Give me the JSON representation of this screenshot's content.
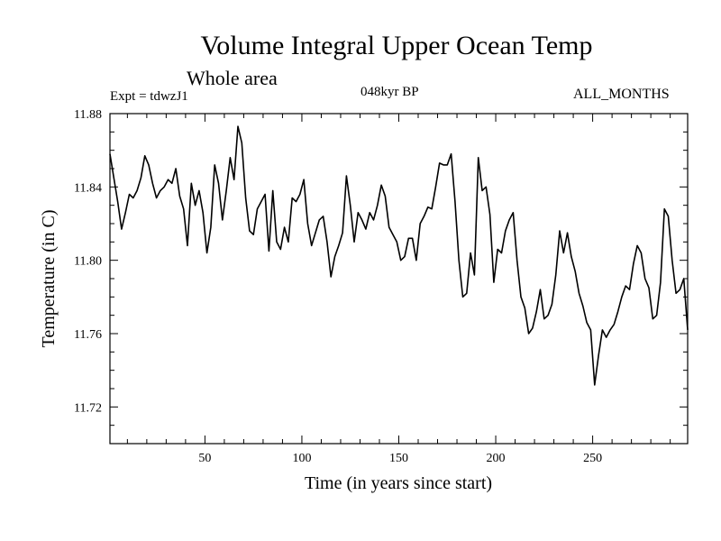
{
  "chart_data": {
    "type": "line",
    "title": "Volume Integral Upper Ocean Temp",
    "subtitle": "Whole area",
    "experiment_label": "Expt = tdwzJ1",
    "period_label": "048kyr BP",
    "months_label": "ALL_MONTHS",
    "xlabel": "Time (in years since start)",
    "ylabel": "Temperature (in C)",
    "xlim": [
      1,
      299
    ],
    "ylim": [
      11.7,
      11.88
    ],
    "x_ticks": [
      50,
      100,
      150,
      200,
      250
    ],
    "y_ticks": [
      11.72,
      11.76,
      11.8,
      11.84,
      11.88
    ],
    "y_tick_labels": [
      "11.72",
      "11.76",
      "11.80",
      "11.84",
      "11.88"
    ],
    "series": [
      {
        "name": "Temperature",
        "color": "#000000",
        "x": [
          1,
          3,
          5,
          7,
          9,
          11,
          13,
          15,
          17,
          19,
          21,
          23,
          25,
          27,
          29,
          31,
          33,
          35,
          37,
          39,
          41,
          43,
          45,
          47,
          49,
          51,
          53,
          55,
          57,
          59,
          61,
          63,
          65,
          67,
          69,
          71,
          73,
          75,
          77,
          79,
          81,
          83,
          85,
          87,
          89,
          91,
          93,
          95,
          97,
          99,
          101,
          103,
          105,
          107,
          109,
          111,
          113,
          115,
          117,
          119,
          121,
          123,
          125,
          127,
          129,
          131,
          133,
          135,
          137,
          139,
          141,
          143,
          145,
          147,
          149,
          151,
          153,
          155,
          157,
          159,
          161,
          163,
          165,
          167,
          169,
          171,
          173,
          175,
          177,
          179,
          181,
          183,
          185,
          187,
          189,
          191,
          193,
          195,
          197,
          199,
          201,
          203,
          205,
          207,
          209,
          211,
          213,
          215,
          217,
          219,
          221,
          223,
          225,
          227,
          229,
          231,
          233,
          235,
          237,
          239,
          241,
          243,
          245,
          247,
          249,
          251,
          253,
          255,
          257,
          259,
          261,
          263,
          265,
          267,
          269,
          271,
          273,
          275,
          277,
          279,
          281,
          283,
          285,
          287,
          289,
          291,
          293,
          295,
          297,
          299
        ],
        "values": [
          11.858,
          11.845,
          11.832,
          11.817,
          11.826,
          11.836,
          11.834,
          11.838,
          11.845,
          11.857,
          11.852,
          11.842,
          11.834,
          11.838,
          11.84,
          11.844,
          11.842,
          11.85,
          11.835,
          11.828,
          11.808,
          11.842,
          11.83,
          11.838,
          11.826,
          11.804,
          11.818,
          11.852,
          11.842,
          11.822,
          11.838,
          11.856,
          11.844,
          11.873,
          11.864,
          11.834,
          11.816,
          11.814,
          11.828,
          11.832,
          11.836,
          11.805,
          11.838,
          11.81,
          11.806,
          11.818,
          11.81,
          11.834,
          11.832,
          11.836,
          11.844,
          11.82,
          11.808,
          11.815,
          11.822,
          11.824,
          11.81,
          11.791,
          11.802,
          11.808,
          11.815,
          11.846,
          11.83,
          11.81,
          11.826,
          11.822,
          11.817,
          11.826,
          11.822,
          11.83,
          11.841,
          11.835,
          11.818,
          11.814,
          11.81,
          11.8,
          11.802,
          11.812,
          11.812,
          11.8,
          11.82,
          11.824,
          11.829,
          11.828,
          11.84,
          11.853,
          11.852,
          11.852,
          11.858,
          11.832,
          11.8,
          11.78,
          11.782,
          11.804,
          11.792,
          11.856,
          11.838,
          11.84,
          11.825,
          11.788,
          11.806,
          11.804,
          11.816,
          11.822,
          11.826,
          11.8,
          11.78,
          11.774,
          11.76,
          11.763,
          11.772,
          11.784,
          11.768,
          11.77,
          11.776,
          11.792,
          11.816,
          11.804,
          11.815,
          11.802,
          11.794,
          11.782,
          11.775,
          11.766,
          11.762,
          11.732,
          11.748,
          11.762,
          11.758,
          11.762,
          11.765,
          11.772,
          11.78,
          11.786,
          11.784,
          11.798,
          11.808,
          11.804,
          11.79,
          11.785,
          11.768,
          11.77,
          11.788,
          11.828,
          11.824,
          11.8,
          11.782,
          11.784,
          11.79,
          11.762
        ]
      }
    ]
  }
}
